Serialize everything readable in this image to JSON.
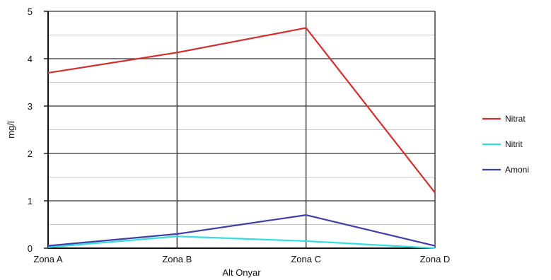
{
  "chart_data": {
    "type": "line",
    "categories": [
      "Zona A",
      "Zona B",
      "Zona C",
      "Zona D"
    ],
    "series": [
      {
        "name": "Nitrat",
        "values": [
          3.7,
          4.13,
          4.65,
          1.17
        ],
        "color": "#d32f2f"
      },
      {
        "name": "Nitrit",
        "values": [
          0.02,
          0.25,
          0.15,
          0.0
        ],
        "color": "#33dde0"
      },
      {
        "name": "Amoni",
        "values": [
          0.05,
          0.3,
          0.7,
          0.05
        ],
        "color": "#3f3fa6"
      }
    ],
    "xlabel": "Alt Onyar",
    "ylabel": "mg/l",
    "ylim": [
      0,
      5
    ],
    "yticks": [
      "0",
      "1",
      "2",
      "3",
      "4",
      "5"
    ],
    "minor_grid_step": 0.5,
    "grid": true,
    "legend_position": "right"
  }
}
